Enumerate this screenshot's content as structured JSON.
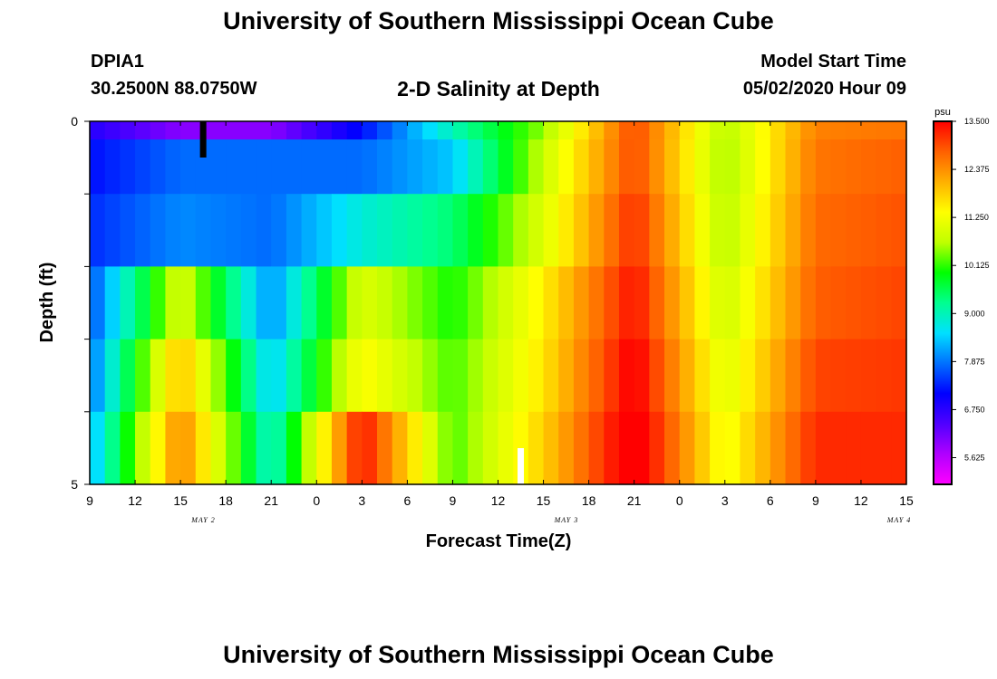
{
  "header": {
    "title_top": "University of Southern Mississippi Ocean Cube",
    "title_bottom": "University of Southern Mississippi Ocean Cube",
    "station": "DPIA1",
    "coords": "30.2500N 88.0750W",
    "subtitle": "2-D Salinity at Depth",
    "model_start_label": "Model Start Time",
    "model_start_value": "05/02/2020 Hour 09"
  },
  "colors": {
    "scale": [
      "#ff00ff",
      "#b000ff",
      "#5000ff",
      "#0000ff",
      "#0070ff",
      "#00e0ff",
      "#00ff90",
      "#00ff00",
      "#c0ff00",
      "#ffff00",
      "#ffb000",
      "#ff6000",
      "#ff0000"
    ],
    "marker_surface": "#000000",
    "marker_bottom": "#ffffff"
  },
  "chart_data": {
    "type": "heatmap",
    "title": "2-D Salinity at Depth",
    "xlabel": "Forecast Time(Z)",
    "ylabel": "Depth (ft)",
    "x_tick_labels": [
      "9",
      "12",
      "15",
      "18",
      "21",
      "0",
      "3",
      "6",
      "9",
      "12",
      "15",
      "18",
      "21",
      "0",
      "3",
      "6",
      "9",
      "12",
      "15"
    ],
    "date_labels": [
      "MAY 2",
      "MAY 3",
      "MAY 4"
    ],
    "y_tick_labels": [
      "0",
      "5"
    ],
    "ylim": [
      0,
      5
    ],
    "colorbar": {
      "unit": "psu",
      "range": [
        5.0,
        13.5
      ],
      "tick_labels": [
        "5.625",
        "6.750",
        "7.875",
        "9.000",
        "10.125",
        "11.250",
        "12.375",
        "13.500"
      ]
    },
    "depth_layers_ft": [
      0,
      0.5,
      1.5,
      2.5,
      3.5,
      4.5
    ],
    "time_hours_from_start": [
      0,
      6,
      12,
      18,
      24,
      30,
      36,
      42,
      48,
      54
    ],
    "salinity_knots_psu": [
      [
        6.8,
        6.0,
        6.0,
        7.2,
        9.0,
        10.5,
        13.0,
        10.6,
        12.5,
        12.6
      ],
      [
        7.2,
        7.8,
        7.8,
        7.8,
        8.4,
        10.8,
        13.0,
        10.5,
        12.6,
        12.8
      ],
      [
        7.4,
        8.0,
        7.8,
        8.8,
        9.4,
        11.0,
        13.2,
        10.6,
        12.7,
        12.9
      ],
      [
        7.6,
        11.0,
        8.0,
        11.0,
        10.0,
        11.5,
        13.4,
        10.8,
        12.8,
        13.0
      ],
      [
        7.8,
        12.0,
        8.4,
        11.4,
        10.2,
        11.6,
        13.6,
        11.0,
        13.0,
        13.1
      ],
      [
        8.2,
        12.5,
        8.8,
        13.4,
        10.2,
        11.8,
        13.8,
        11.2,
        13.2,
        13.2
      ]
    ],
    "markers": [
      {
        "name": "surface-observation",
        "hour": 7.5,
        "depth_ft": 0
      },
      {
        "name": "bottom-observation",
        "hour": 28.5,
        "depth_ft": 5
      }
    ]
  }
}
